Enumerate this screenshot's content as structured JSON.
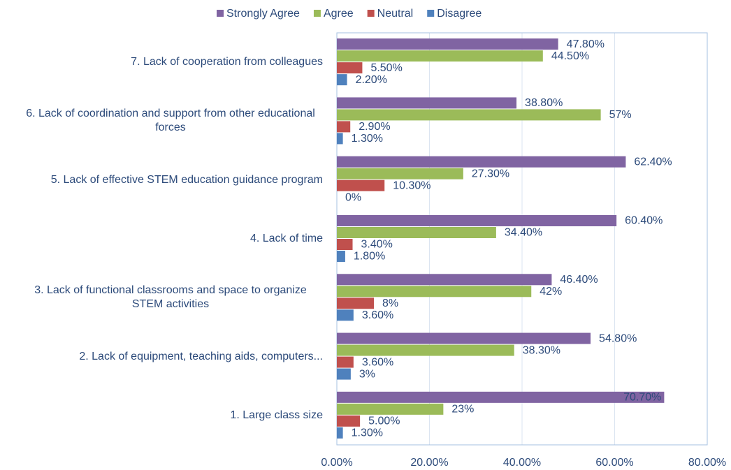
{
  "chart_data": {
    "type": "hbar",
    "categories": [
      "1. Large class size",
      "2. Lack of equipment, teaching aids, computers...",
      "3. Lack of functional classrooms and space to organize STEM activities",
      "4. Lack of time",
      "5. Lack of effective STEM education guidance program",
      "6. Lack of coordination and support from other educational forces",
      "7. Lack of cooperation from colleagues"
    ],
    "series": [
      {
        "name": "Strongly Agree",
        "color": "#8064a2",
        "values": [
          70.7,
          54.8,
          46.4,
          60.4,
          62.4,
          38.8,
          47.8
        ],
        "value_labels": [
          "70.70%",
          "54.80%",
          "46.40%",
          "60.40%",
          "62.40%",
          "38.80%",
          "47.80%"
        ]
      },
      {
        "name": "Agree",
        "color": "#9bbb59",
        "values": [
          23,
          38.3,
          42,
          34.4,
          27.3,
          57,
          44.5
        ],
        "value_labels": [
          "23%",
          "38.30%",
          "42%",
          "34.40%",
          "27.30%",
          "57%",
          "44.50%"
        ]
      },
      {
        "name": "Neutral",
        "color": "#c0504d",
        "values": [
          5.0,
          3.6,
          8,
          3.4,
          10.3,
          2.9,
          5.5
        ],
        "value_labels": [
          "5.00%",
          "3.60%",
          "8%",
          "3.40%",
          "10.30%",
          "2.90%",
          "5.50%"
        ]
      },
      {
        "name": "Disagree",
        "color": "#4f81bd",
        "values": [
          1.3,
          3,
          3.6,
          1.8,
          0,
          1.3,
          2.2
        ],
        "value_labels": [
          "1.30%",
          "3%",
          "3.60%",
          "1.80%",
          "0%",
          "1.30%",
          "2.20%"
        ]
      }
    ],
    "xlim": [
      0,
      80
    ],
    "xticks": [
      {
        "value": 0,
        "label": "0.00%"
      },
      {
        "value": 20,
        "label": "20.00%"
      },
      {
        "value": 40,
        "label": "40.00%"
      },
      {
        "value": 60,
        "label": "60.00%"
      },
      {
        "value": 80,
        "label": "80.00%"
      }
    ],
    "grid": true,
    "legend": "top"
  }
}
